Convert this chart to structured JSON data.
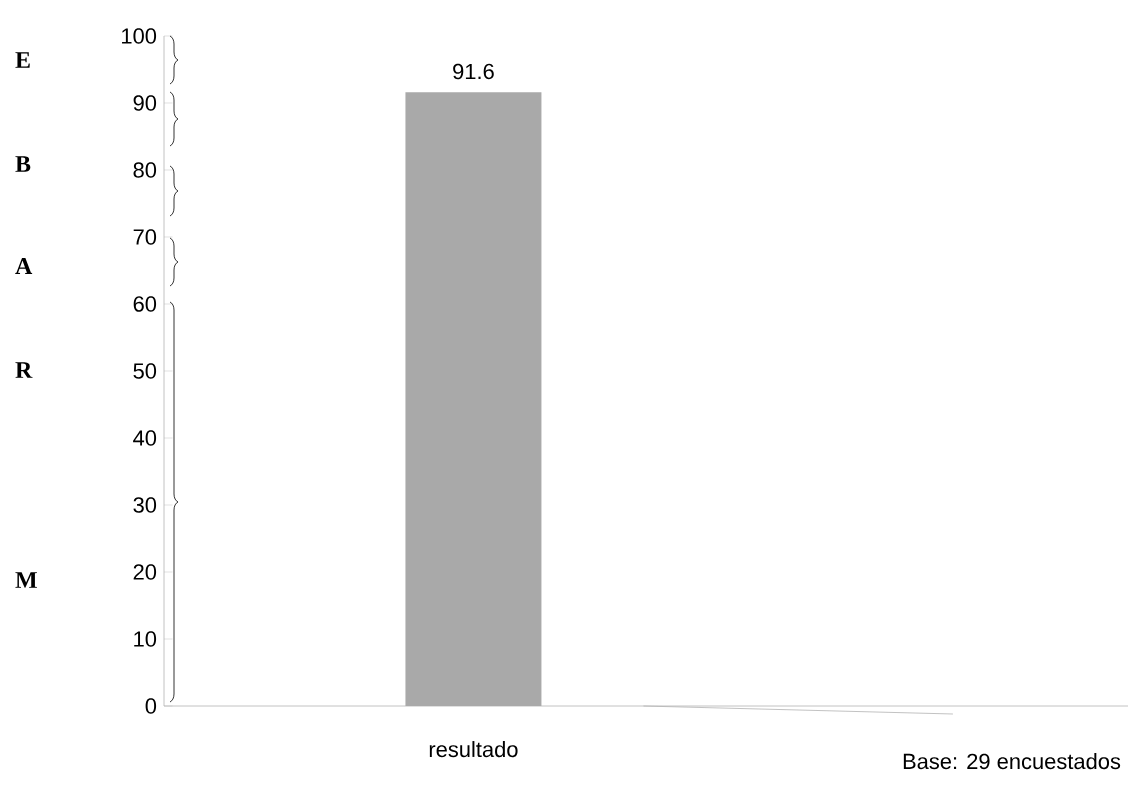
{
  "chart_data": {
    "type": "bar",
    "categories": [
      "resultado",
      null
    ],
    "values": [
      91.6,
      null
    ],
    "color": "#a9a9a9",
    "data_labels": true,
    "ylim": [
      0,
      100
    ],
    "yticks": [
      0,
      10,
      20,
      30,
      40,
      50,
      60,
      70,
      80,
      90,
      100
    ],
    "annotations": [
      "E",
      "B",
      "A",
      "R",
      "M",
      "Base: 29 encuestados"
    ]
  }
}
